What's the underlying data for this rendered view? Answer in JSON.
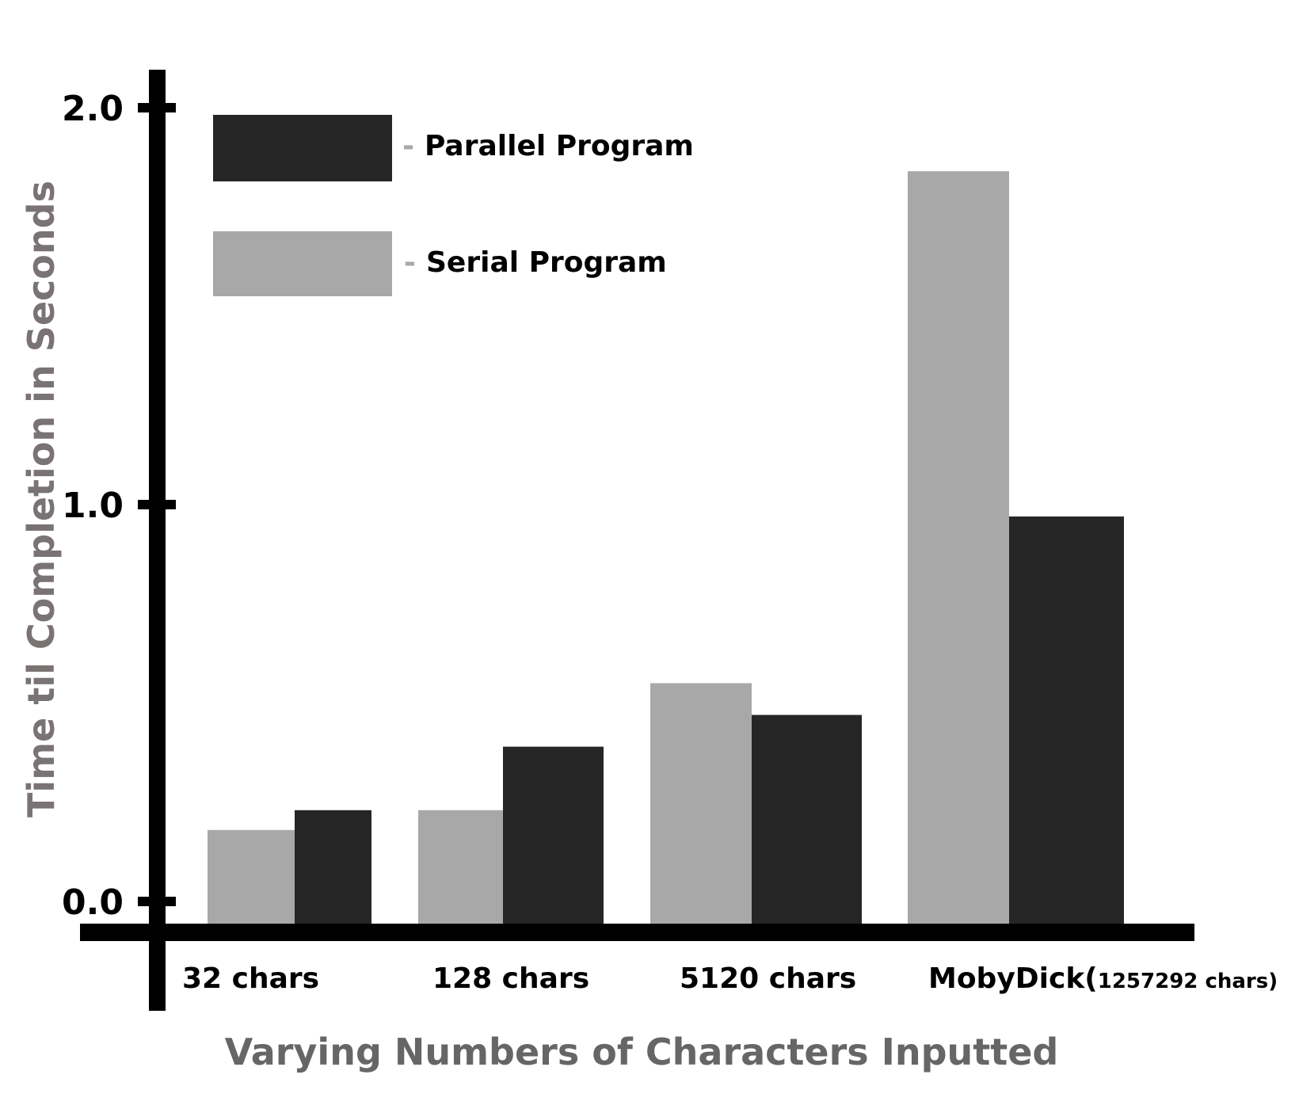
{
  "chart_data": {
    "type": "bar",
    "title": "",
    "xlabel": "Varying Numbers of Characters Inputted",
    "ylabel": "Time til Completion  in Seconds",
    "ylim": [
      0,
      2
    ],
    "yticks": [
      "0.0",
      "1.0",
      "2.0"
    ],
    "categories": [
      {
        "main": "32 chars",
        "extra": ""
      },
      {
        "main": "128 chars",
        "extra": ""
      },
      {
        "main": "5120 chars",
        "extra": ""
      },
      {
        "main": "MobyDick(",
        "extra": "1257292 chars)"
      }
    ],
    "series": [
      {
        "name": "Serial Program",
        "color": "#a8a8a8",
        "values": [
          0.18,
          0.23,
          0.55,
          1.84
        ]
      },
      {
        "name": "Parallel Program",
        "color": "#262626",
        "values": [
          0.23,
          0.39,
          0.47,
          0.97
        ]
      }
    ],
    "legend": {
      "placement": "top-left",
      "separator": "-",
      "entries": [
        {
          "label": "Parallel Program",
          "color": "#262626"
        },
        {
          "label": "Serial Program",
          "color": "#a8a8a8"
        }
      ]
    },
    "grid": false
  }
}
